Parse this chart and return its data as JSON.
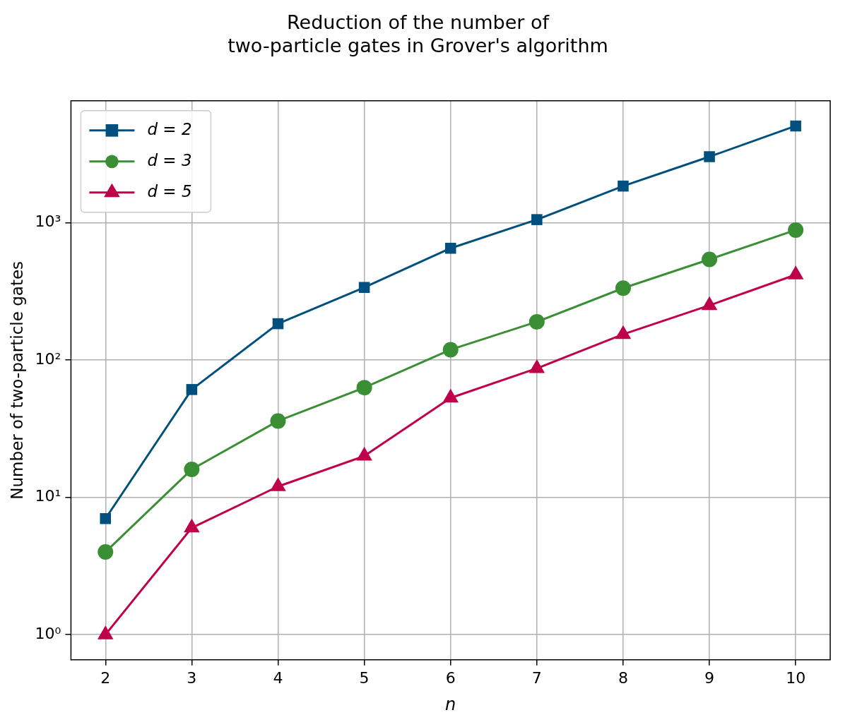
{
  "chart_data": {
    "type": "line",
    "title": "Reduction of the number of\ntwo-particle gates in Grover's algorithm",
    "xlabel": "n",
    "ylabel": "Number of two-particle gates",
    "x": [
      2,
      3,
      4,
      5,
      6,
      7,
      8,
      9,
      10
    ],
    "series": [
      {
        "name": "d = 2",
        "color": "#00507f",
        "marker": "square",
        "values": [
          7,
          61,
          184,
          338,
          652,
          1054,
          1850,
          3027,
          5070
        ]
      },
      {
        "name": "d = 3",
        "color": "#3a8f35",
        "marker": "circle",
        "values": [
          4,
          16,
          36,
          63,
          119,
          190,
          334,
          541,
          885
        ]
      },
      {
        "name": "d = 5",
        "color": "#c0004a",
        "marker": "triangle",
        "values": [
          1,
          6,
          12,
          20,
          53,
          87,
          154,
          250,
          418
        ]
      }
    ],
    "log": "y",
    "xlim": [
      1.6,
      10.4
    ],
    "xticks": [
      2,
      3,
      4,
      5,
      6,
      7,
      8,
      9,
      10
    ],
    "ylim": [
      0.656,
      7730
    ],
    "yticks": [
      {
        "value": 1,
        "label": "10⁰"
      },
      {
        "value": 10,
        "label": "10¹"
      },
      {
        "value": 100,
        "label": "10²"
      },
      {
        "value": 1000,
        "label": "10³"
      }
    ],
    "grid": true,
    "legend": "top left",
    "line_style": "solid"
  }
}
